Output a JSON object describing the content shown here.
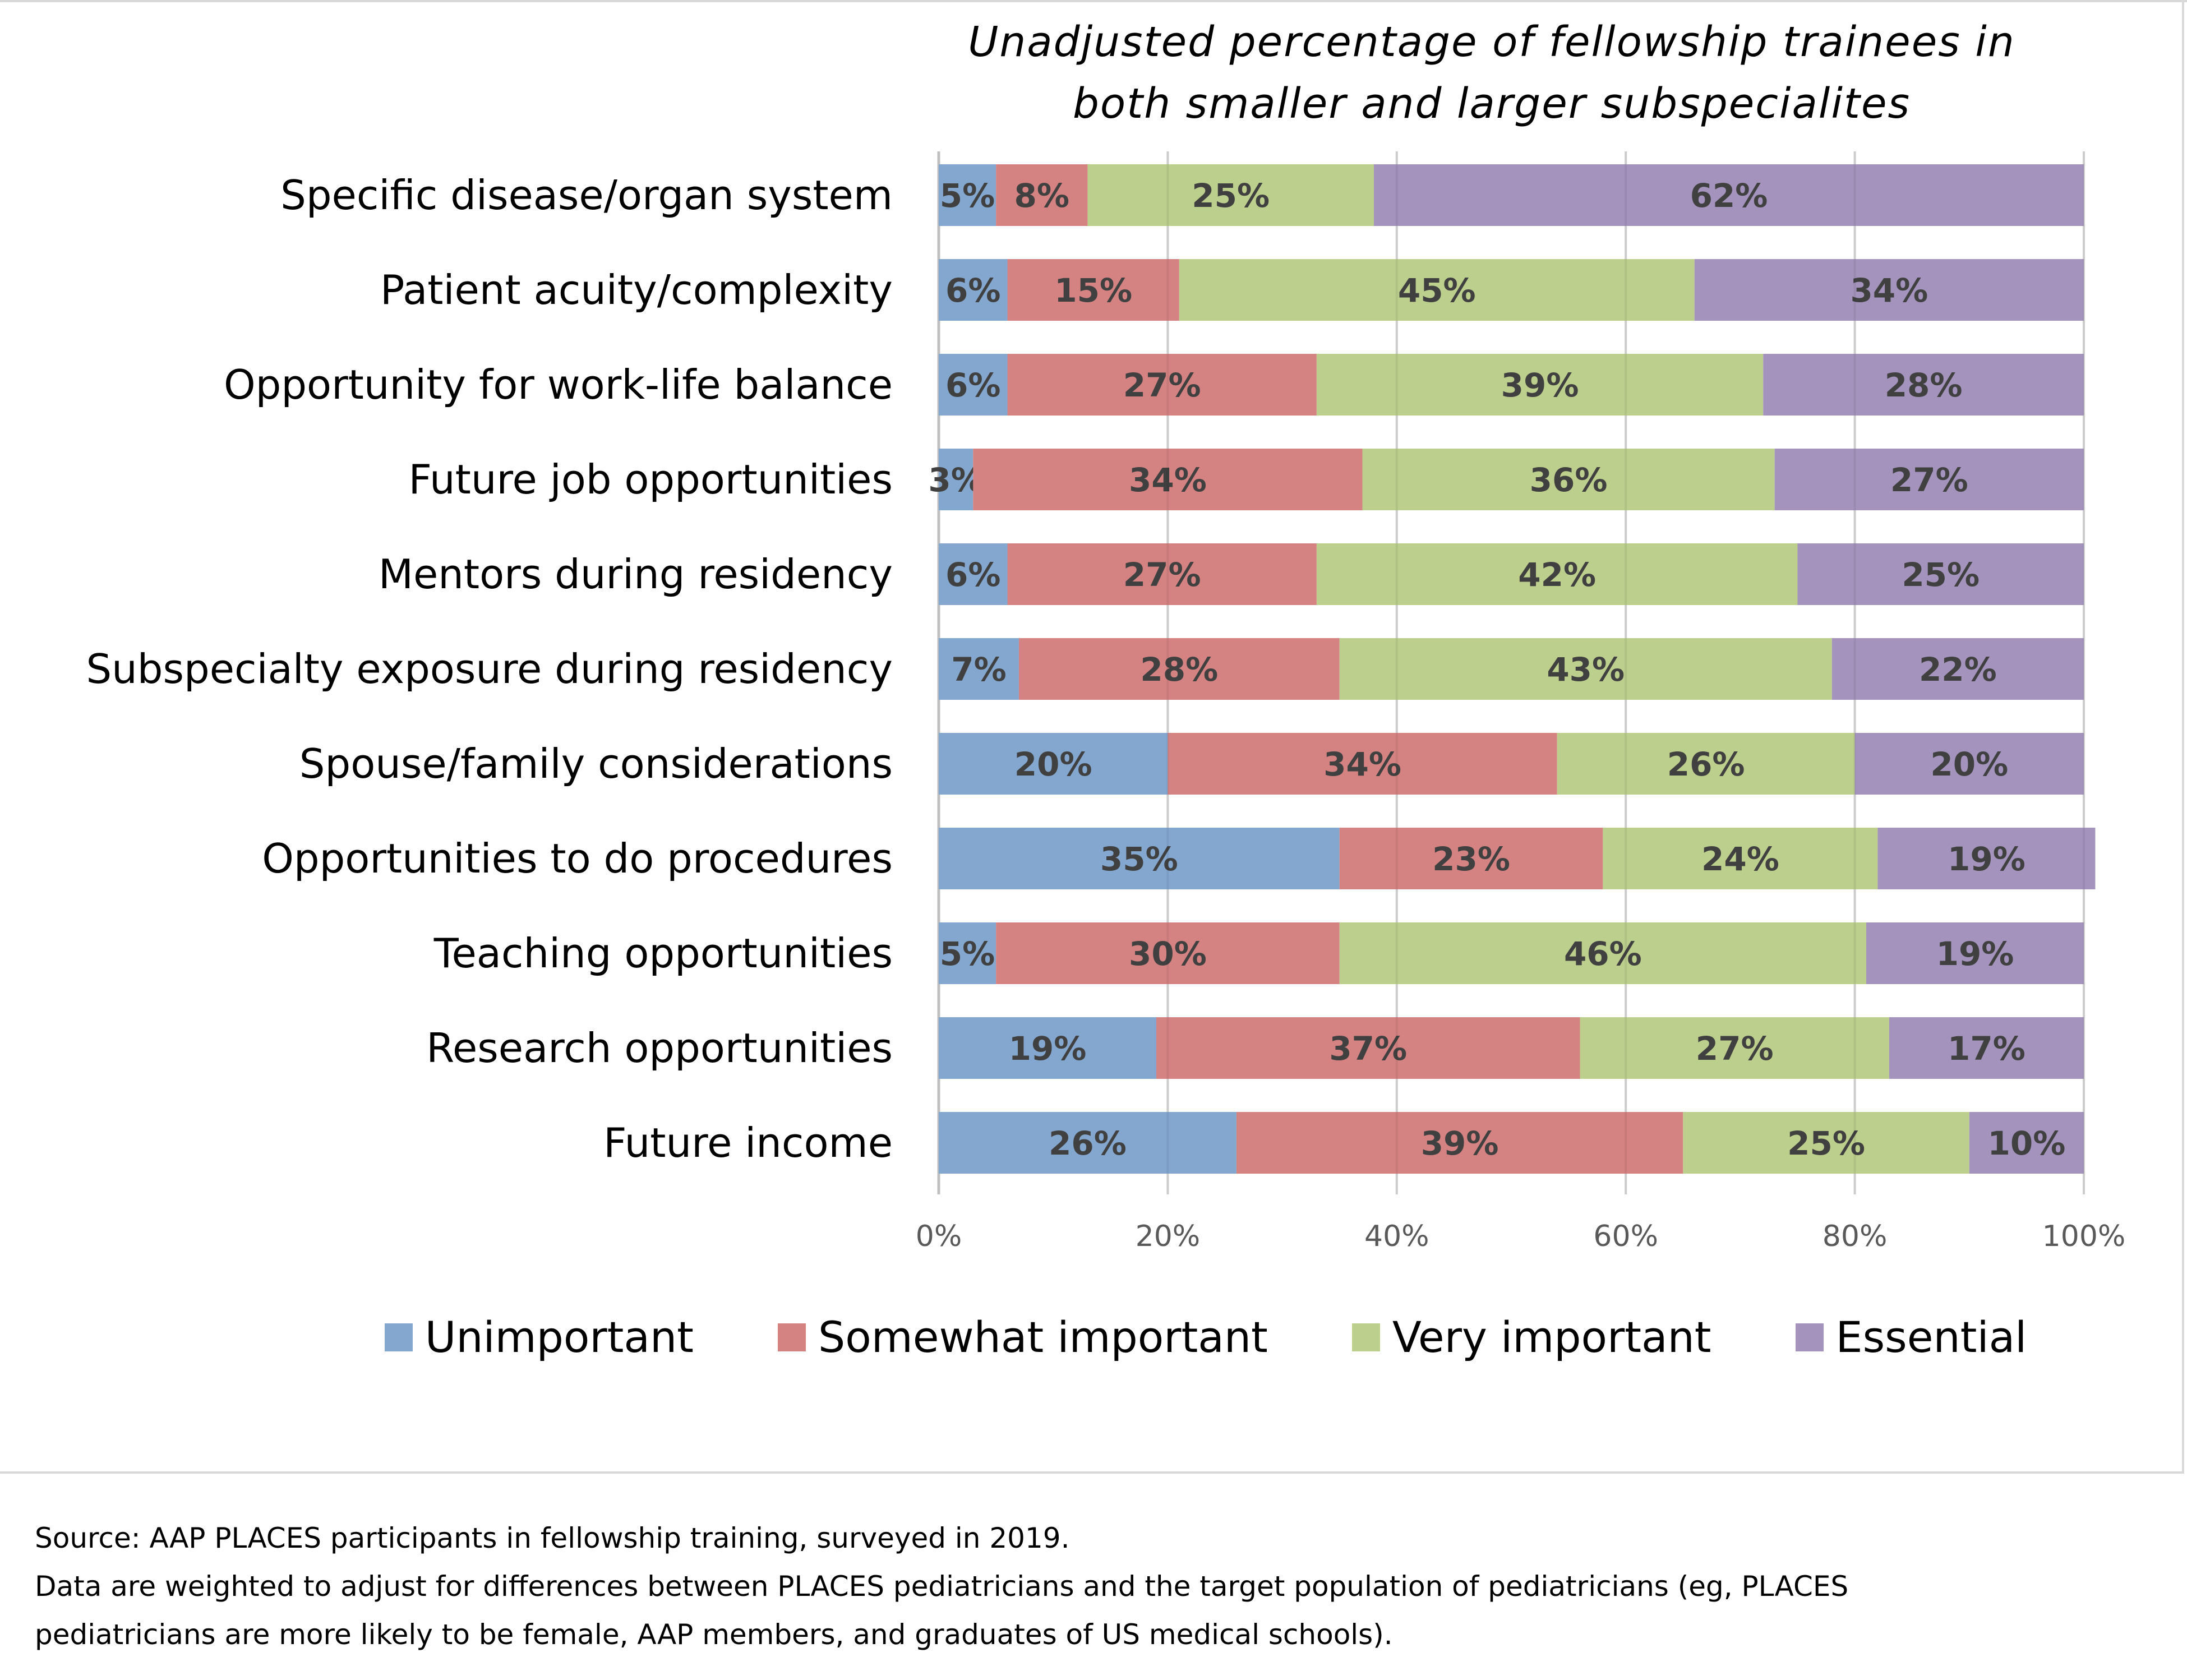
{
  "chart_data": {
    "type": "bar",
    "orientation": "horizontal",
    "stacked": "percent",
    "title": "Unadjusted percentage of fellowship trainees in both smaller and larger subspecialites",
    "title_lines": [
      "Unadjusted percentage of fellowship trainees in",
      "both smaller and larger subspecialites"
    ],
    "xlabel": "",
    "ylabel": "",
    "xlim": [
      0,
      100
    ],
    "x_ticks": [
      "0%",
      "20%",
      "40%",
      "60%",
      "80%",
      "100%"
    ],
    "x_tick_values": [
      0,
      20,
      40,
      60,
      80,
      100
    ],
    "grid": true,
    "legend_position": "bottom",
    "categories": [
      "Specific disease/organ system",
      "Patient acuity/complexity",
      "Opportunity for work-life balance",
      "Future job opportunities",
      "Mentors during residency",
      "Subspecialty exposure during residency",
      "Spouse/family considerations",
      "Opportunities to do procedures",
      "Teaching opportunities",
      "Research opportunities",
      "Future income"
    ],
    "series": [
      {
        "name": "Unimportant",
        "color": "#84a7d0",
        "values": [
          5,
          6,
          6,
          3,
          6,
          7,
          20,
          35,
          5,
          19,
          26
        ]
      },
      {
        "name": "Somewhat important",
        "color": "#d48282",
        "values": [
          8,
          15,
          27,
          34,
          27,
          28,
          34,
          23,
          30,
          37,
          39
        ]
      },
      {
        "name": "Very important",
        "color": "#bccf8c",
        "values": [
          25,
          45,
          39,
          36,
          42,
          43,
          26,
          24,
          46,
          27,
          25
        ]
      },
      {
        "name": "Essential",
        "color": "#a493bd",
        "values": [
          62,
          34,
          28,
          27,
          25,
          22,
          20,
          19,
          19,
          17,
          10
        ]
      }
    ],
    "value_label_suffix": "%"
  },
  "footnote": {
    "lines": [
      "Source: AAP PLACES participants in fellowship training, surveyed in 2019.",
      "Data are weighted to adjust for differences between PLACES pediatricians and the target population of pediatricians (eg, PLACES",
      "pediatricians are more likely to be female, AAP members, and graduates of US medical schools)."
    ]
  }
}
